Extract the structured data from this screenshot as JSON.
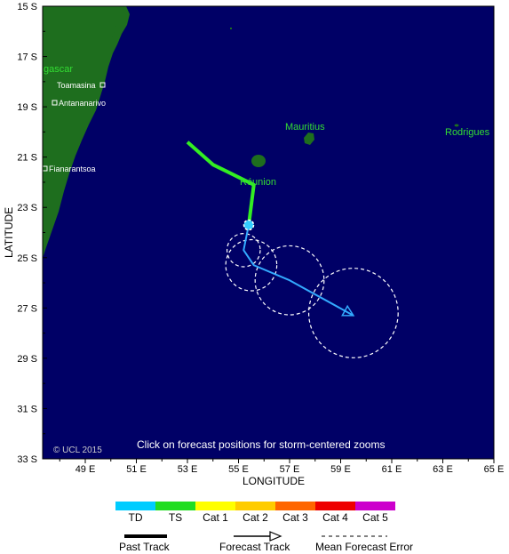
{
  "axes": {
    "x_title": "LONGITUDE",
    "y_title": "LATITUDE",
    "lat_ticks": [
      "15 S",
      "17 S",
      "19 S",
      "21 S",
      "23 S",
      "25 S",
      "27 S",
      "29 S",
      "31 S",
      "33 S"
    ],
    "lon_ticks": [
      "49 E",
      "51 E",
      "53 E",
      "55 E",
      "57 E",
      "59 E",
      "61 E",
      "63 E",
      "65 E"
    ]
  },
  "places": {
    "madagascar": "gascar",
    "toamasina": "Toamasina",
    "antananarivo": "Antananarivo",
    "fianarantsoa": "Fianarantsoa",
    "mauritius": "Mauritius",
    "reunion": "Réunion",
    "rodrigues": "Rodrigues"
  },
  "notes": {
    "copyright": "© UCL 2015",
    "zoom_hint": "Click on forecast positions for storm-centered zooms"
  },
  "colors": {
    "ocean": "#000066",
    "land": "#1e6e1e",
    "past_track": "#33ee22",
    "forecast_track": "#33aaff"
  },
  "past_track": [
    [
      53.0,
      -20.4
    ],
    [
      54.0,
      -21.3
    ],
    [
      55.6,
      -22.1
    ],
    [
      55.4,
      -23.7
    ]
  ],
  "forecast_track": [
    [
      55.4,
      -23.7
    ],
    [
      55.2,
      -24.7
    ],
    [
      55.6,
      -25.3
    ],
    [
      57.0,
      -25.9
    ],
    [
      59.5,
      -27.3
    ]
  ],
  "error_circles": [
    {
      "lon": 55.2,
      "lat": -24.7,
      "radius_deg": 0.65
    },
    {
      "lon": 55.5,
      "lat": -25.3,
      "radius_deg": 1.0
    },
    {
      "lon": 57.0,
      "lat": -25.9,
      "radius_deg": 1.35
    },
    {
      "lon": 59.5,
      "lat": -27.2,
      "radius_deg": 1.75
    }
  ],
  "legend": {
    "categories": [
      {
        "label": "TD",
        "color": "#00ccff"
      },
      {
        "label": "TS",
        "color": "#22dd22"
      },
      {
        "label": "Cat 1",
        "color": "#ffff00"
      },
      {
        "label": "Cat 2",
        "color": "#ffcc00"
      },
      {
        "label": "Cat 3",
        "color": "#ff6600"
      },
      {
        "label": "Cat 4",
        "color": "#ee0000"
      },
      {
        "label": "Cat 5",
        "color": "#cc00cc"
      }
    ],
    "past_track": "Past Track",
    "forecast_track": "Forecast Track",
    "mean_error": "Mean Forecast Error"
  }
}
